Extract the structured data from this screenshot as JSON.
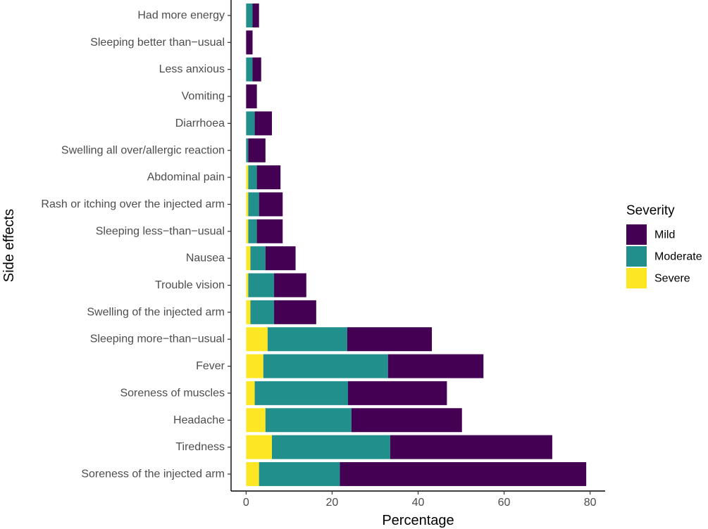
{
  "chart_data": {
    "type": "bar",
    "orientation": "horizontal",
    "stacked": true,
    "xlabel": "Percentage",
    "ylabel": "Side effects",
    "xlim": [
      -3.5,
      83.5
    ],
    "xticks": [
      0,
      20,
      40,
      60,
      80
    ],
    "grid": false,
    "legend": {
      "title": "Severity",
      "placement": "right",
      "entries": [
        "Mild",
        "Moderate",
        "Severe"
      ]
    },
    "colors": {
      "Mild": "#440154",
      "Moderate": "#21908C",
      "Severe": "#FDE725"
    },
    "categories": [
      "Had more energy",
      "Sleeping better than−usual",
      "Less anxious",
      "Vomiting",
      "Diarrhoea",
      "Swelling all over/allergic reaction",
      "Abdominal pain",
      "Rash or itching over the injected arm",
      "Sleeping less−than−usual",
      "Nausea",
      "Trouble vision",
      "Swelling of the injected arm",
      "Sleeping more−than−usual",
      "Fever",
      "Soreness of muscles",
      "Headache",
      "Tiredness",
      "Soreness of the injected arm"
    ],
    "series": [
      {
        "name": "Severe",
        "values": [
          0,
          0,
          0,
          0,
          0,
          0,
          0.5,
          0.5,
          0.5,
          1.0,
          0.5,
          1.0,
          5.0,
          4.0,
          2.0,
          4.5,
          6.0,
          3.0
        ]
      },
      {
        "name": "Moderate",
        "values": [
          1.5,
          0,
          1.5,
          0,
          2.0,
          0.5,
          2.0,
          2.5,
          2.0,
          3.5,
          6.0,
          5.5,
          18.5,
          29.0,
          21.7,
          20.0,
          27.5,
          18.8
        ]
      },
      {
        "name": "Mild",
        "values": [
          1.5,
          1.5,
          2.0,
          2.5,
          4.0,
          4.0,
          5.5,
          5.5,
          6.0,
          7.0,
          7.5,
          9.8,
          19.7,
          22.2,
          23.0,
          25.7,
          37.7,
          57.3
        ]
      }
    ]
  }
}
